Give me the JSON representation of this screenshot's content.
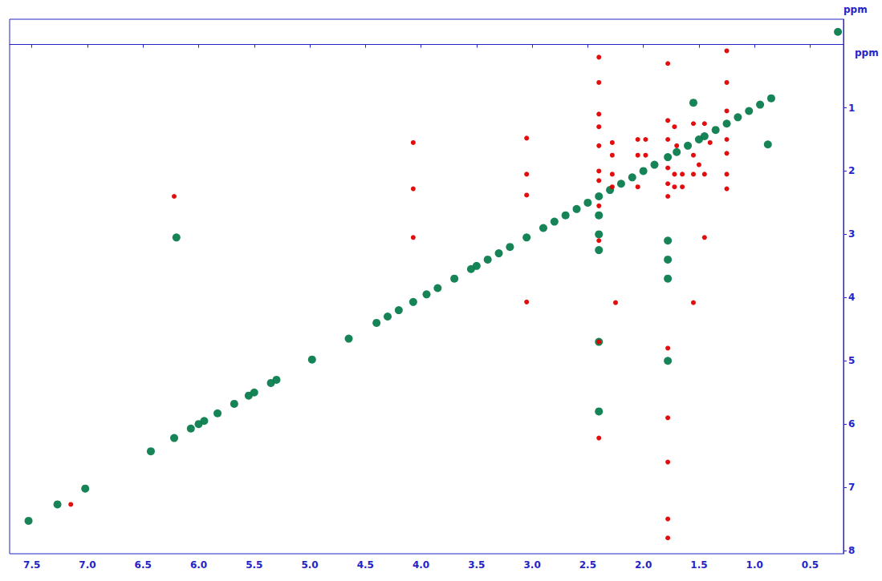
{
  "chart_data": {
    "type": "scatter",
    "xlabel": "ppm",
    "ylabel": "ppm",
    "xlim": [
      0.2,
      7.7
    ],
    "ylim": [
      -0.4,
      8.05
    ],
    "log": false,
    "grid": false,
    "xticks": [
      {
        "value": 7.5,
        "label": "7.5"
      },
      {
        "value": 7,
        "label": "7.0"
      },
      {
        "value": 6.5,
        "label": "6.5"
      },
      {
        "value": 6,
        "label": "6.0"
      },
      {
        "value": 5.5,
        "label": "5.5"
      },
      {
        "value": 5,
        "label": "5.0"
      },
      {
        "value": 4.5,
        "label": "4.5"
      },
      {
        "value": 4,
        "label": "4.0"
      },
      {
        "value": 3.5,
        "label": "3.5"
      },
      {
        "value": 3,
        "label": "3.0"
      },
      {
        "value": 2.5,
        "label": "2.5"
      },
      {
        "value": 2,
        "label": "2.0"
      },
      {
        "value": 1.5,
        "label": "1.5"
      },
      {
        "value": 1,
        "label": "1.0"
      },
      {
        "value": 0.5,
        "label": "0.5"
      }
    ],
    "yticks": [
      1,
      2,
      3,
      4,
      5,
      6,
      7,
      8
    ],
    "series": [
      {
        "color": "#0b7d4f",
        "marker": "circle",
        "x": [
          7.53,
          7.27,
          7.02,
          6.43,
          6.22,
          6.07,
          6.0,
          5.95,
          5.83,
          5.68,
          5.55,
          5.5,
          5.35,
          5.3,
          4.98,
          4.65,
          4.4,
          4.3,
          4.2,
          4.07,
          3.95,
          3.85,
          3.7,
          3.55,
          3.5,
          3.4,
          3.3,
          3.2,
          3.05,
          2.9,
          2.8,
          2.7,
          2.6,
          2.5,
          2.4,
          2.3,
          2.2,
          2.1,
          2.0,
          1.9,
          1.78,
          1.7,
          1.6,
          1.5,
          1.45,
          1.35,
          1.25,
          1.15,
          1.05,
          0.95,
          0.85,
          1.55,
          0.88,
          0.25,
          6.2,
          2.4,
          2.4,
          2.4,
          2.4,
          2.4,
          1.78,
          1.78,
          1.78,
          1.78
        ],
        "y": [
          7.53,
          7.27,
          7.02,
          6.43,
          6.22,
          6.07,
          6.0,
          5.95,
          5.83,
          5.68,
          5.55,
          5.5,
          5.35,
          5.3,
          4.98,
          4.65,
          4.4,
          4.3,
          4.2,
          4.07,
          3.95,
          3.85,
          3.7,
          3.55,
          3.5,
          3.4,
          3.3,
          3.2,
          3.05,
          2.9,
          2.8,
          2.7,
          2.6,
          2.5,
          2.4,
          2.3,
          2.2,
          2.1,
          2.0,
          1.9,
          1.78,
          1.7,
          1.6,
          1.5,
          1.45,
          1.35,
          1.25,
          1.15,
          1.05,
          0.95,
          0.85,
          0.92,
          1.58,
          -0.2,
          3.05,
          2.7,
          3.0,
          3.25,
          4.7,
          5.8,
          3.1,
          3.4,
          3.7,
          5.0
        ]
      },
      {
        "color": "#e00000",
        "marker": "circle",
        "x": [
          7.15,
          6.22,
          2.4,
          4.07,
          4.07,
          4.07,
          3.05,
          3.05,
          3.05,
          3.05,
          1.45,
          2.25,
          1.55,
          2.28,
          2.28,
          2.28,
          2.28,
          2.05,
          2.05,
          2.05,
          1.98,
          1.98,
          1.72,
          1.72,
          1.72,
          1.65,
          1.65,
          1.55,
          1.55,
          1.55,
          1.45,
          1.45,
          1.25,
          1.25,
          1.25,
          1.25,
          1.5,
          1.4,
          1.7,
          2.4,
          2.4,
          2.4,
          2.4,
          2.4,
          2.4,
          2.4,
          2.4,
          2.4,
          2.4,
          1.78,
          1.78,
          1.78,
          1.78,
          1.78,
          1.78,
          1.78,
          1.78,
          1.78,
          1.78,
          1.78,
          1.25,
          1.25,
          1.25
        ],
        "y": [
          7.27,
          2.4,
          6.22,
          1.55,
          2.28,
          3.05,
          4.07,
          1.48,
          2.05,
          2.38,
          3.05,
          4.08,
          4.08,
          1.55,
          1.75,
          2.05,
          2.25,
          1.5,
          1.75,
          2.25,
          1.5,
          1.75,
          1.3,
          2.05,
          2.25,
          2.05,
          2.25,
          1.25,
          1.75,
          2.05,
          1.25,
          2.05,
          1.5,
          1.72,
          2.05,
          2.28,
          1.9,
          1.55,
          1.6,
          0.2,
          0.6,
          1.1,
          1.3,
          1.6,
          2.0,
          2.15,
          2.55,
          3.1,
          4.7,
          0.3,
          1.2,
          1.5,
          1.95,
          2.2,
          2.4,
          4.8,
          5.9,
          6.6,
          7.5,
          7.8,
          0.1,
          0.6,
          1.05
        ]
      }
    ]
  }
}
